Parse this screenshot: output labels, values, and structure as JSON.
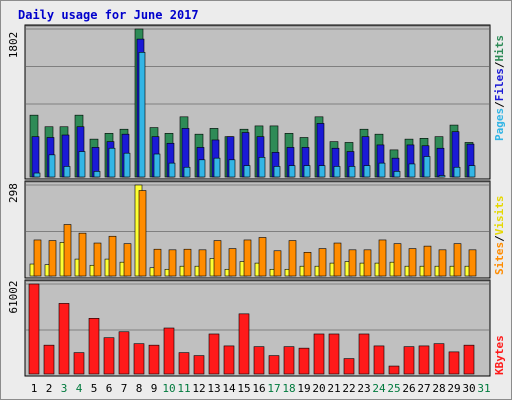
{
  "title": "Daily usage for June 2017",
  "chart_data": [
    {
      "type": "bar",
      "title": "Daily usage for June 2017",
      "panel": "top",
      "ylim": [
        0,
        1802
      ],
      "y_tick_label": "1802",
      "categories": [
        "1",
        "2",
        "3",
        "4",
        "5",
        "6",
        "7",
        "8",
        "9",
        "10",
        "11",
        "12",
        "13",
        "14",
        "15",
        "16",
        "17",
        "18",
        "19",
        "20",
        "21",
        "22",
        "23",
        "24",
        "25",
        "26",
        "27",
        "28",
        "29",
        "30"
      ],
      "series": [
        {
          "name": "Hits",
          "color": "#2e8b57",
          "values": [
            760,
            620,
            620,
            760,
            470,
            540,
            590,
            1802,
            610,
            540,
            740,
            530,
            600,
            500,
            590,
            630,
            630,
            540,
            490,
            740,
            440,
            430,
            590,
            530,
            340,
            470,
            480,
            500,
            640,
            430
          ]
        },
        {
          "name": "Files",
          "color": "#1a1ad6",
          "values": [
            500,
            490,
            520,
            620,
            370,
            440,
            530,
            1680,
            500,
            420,
            600,
            370,
            460,
            500,
            550,
            500,
            310,
            370,
            370,
            660,
            360,
            320,
            500,
            400,
            240,
            400,
            390,
            360,
            560,
            410
          ]
        },
        {
          "name": "Pages",
          "color": "#33b5e5",
          "values": [
            60,
            280,
            140,
            320,
            80,
            360,
            300,
            1520,
            290,
            180,
            130,
            220,
            240,
            220,
            150,
            250,
            140,
            150,
            150,
            150,
            140,
            140,
            150,
            180,
            80,
            170,
            260,
            30,
            130,
            150
          ]
        }
      ]
    },
    {
      "type": "bar",
      "panel": "middle",
      "ylim": [
        0,
        298
      ],
      "y_tick_label": "298",
      "categories": [
        "1",
        "2",
        "3",
        "4",
        "5",
        "6",
        "7",
        "8",
        "9",
        "10",
        "11",
        "12",
        "13",
        "14",
        "15",
        "16",
        "17",
        "18",
        "19",
        "20",
        "21",
        "22",
        "23",
        "24",
        "25",
        "26",
        "27",
        "28",
        "29",
        "30"
      ],
      "series": [
        {
          "name": "Visits",
          "color": "#ffff33",
          "values": [
            42,
            40,
            112,
            58,
            38,
            58,
            48,
            298,
            30,
            25,
            35,
            35,
            60,
            25,
            50,
            45,
            25,
            25,
            35,
            35,
            45,
            50,
            45,
            45,
            48,
            35,
            35,
            35,
            35,
            35
          ]
        },
        {
          "name": "Sites",
          "color": "#ff8c00",
          "values": [
            120,
            118,
            170,
            142,
            110,
            132,
            108,
            280,
            90,
            88,
            90,
            88,
            118,
            92,
            120,
            128,
            85,
            118,
            80,
            92,
            110,
            88,
            88,
            120,
            108,
            92,
            100,
            88,
            108,
            88
          ]
        }
      ]
    },
    {
      "type": "bar",
      "panel": "bottom",
      "ylim": [
        0,
        61002
      ],
      "y_tick_label": "61002",
      "categories": [
        "1",
        "2",
        "3",
        "4",
        "5",
        "6",
        "7",
        "8",
        "9",
        "10",
        "11",
        "12",
        "13",
        "14",
        "15",
        "16",
        "17",
        "18",
        "19",
        "20",
        "21",
        "22",
        "23",
        "24",
        "25",
        "26",
        "27",
        "28",
        "29",
        "30"
      ],
      "series": [
        {
          "name": "KBytes",
          "color": "#ff1a1a",
          "values": [
            61002,
            20000,
            48000,
            15000,
            38000,
            25000,
            29000,
            21000,
            20000,
            31500,
            15000,
            13000,
            27500,
            19500,
            41000,
            19000,
            13000,
            19000,
            18000,
            27500,
            27500,
            11000,
            27500,
            19500,
            6000,
            19000,
            19500,
            21000,
            15500,
            20000
          ]
        }
      ]
    }
  ],
  "x_axis": {
    "labels": [
      "1",
      "2",
      "3",
      "4",
      "5",
      "6",
      "7",
      "8",
      "9",
      "10",
      "11",
      "12",
      "13",
      "14",
      "15",
      "16",
      "17",
      "18",
      "19",
      "20",
      "21",
      "22",
      "23",
      "24",
      "25",
      "26",
      "27",
      "28",
      "29",
      "30",
      "31"
    ],
    "weekday_color": "#000000",
    "weekend_color": "#007a3d",
    "weekend_days": [
      "3",
      "4",
      "10",
      "11",
      "17",
      "18",
      "24",
      "25",
      "31"
    ]
  },
  "legends": {
    "top": [
      {
        "text": "Pages",
        "color": "#33b5e5"
      },
      {
        "text": "/",
        "color": "#000000"
      },
      {
        "text": "Files",
        "color": "#1a1ad6"
      },
      {
        "text": "/",
        "color": "#000000"
      },
      {
        "text": "Hits",
        "color": "#2e8b57"
      }
    ],
    "middle": [
      {
        "text": "Sites",
        "color": "#ff8c00"
      },
      {
        "text": "/",
        "color": "#000000"
      },
      {
        "text": "Visits",
        "color": "#e6d800"
      }
    ],
    "bottom": [
      {
        "text": "KBytes",
        "color": "#ff1a1a"
      }
    ]
  }
}
